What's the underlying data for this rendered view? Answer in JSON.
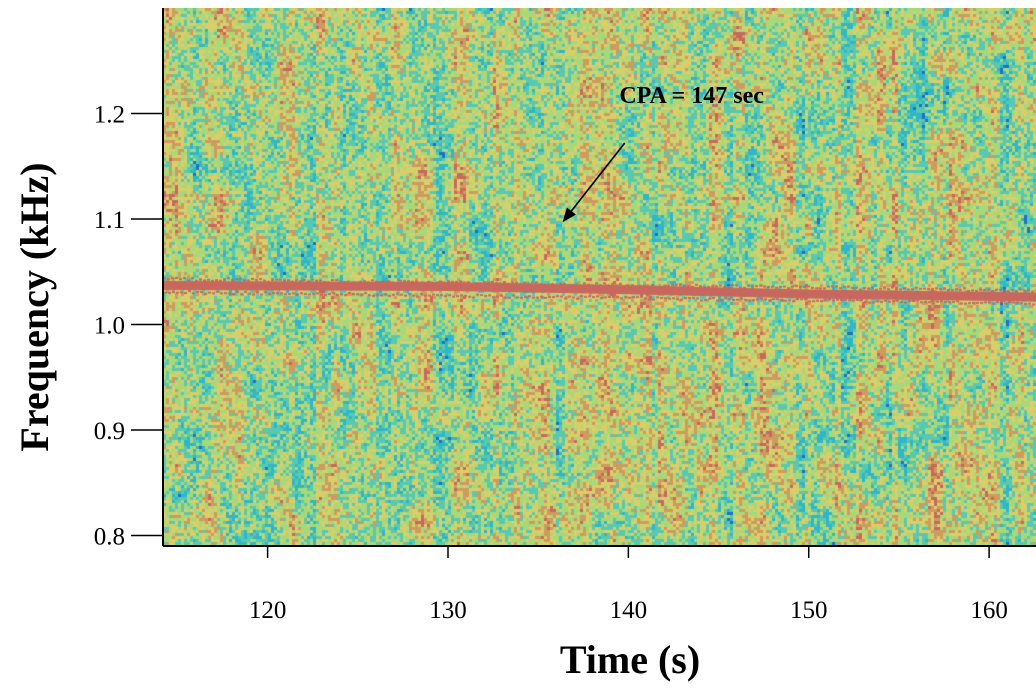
{
  "chart_data": {
    "type": "heatmap",
    "title": "",
    "xlabel": "Time (s)",
    "ylabel": "Frequency (kHz)",
    "xlim": [
      114.2,
      162.6
    ],
    "ylim": [
      0.79,
      1.3
    ],
    "x_ticks": [
      {
        "value": 120,
        "label": "120"
      },
      {
        "value": 130,
        "label": "130"
      },
      {
        "value": 140,
        "label": "140"
      },
      {
        "value": 150,
        "label": "150"
      },
      {
        "value": 160,
        "label": "160"
      }
    ],
    "y_ticks": [
      {
        "value": 0.8,
        "label": "0.8"
      },
      {
        "value": 0.9,
        "label": "0.9"
      },
      {
        "value": 1.0,
        "label": "1.0"
      },
      {
        "value": 1.1,
        "label": "1.1"
      },
      {
        "value": 1.2,
        "label": "1.2"
      }
    ],
    "colormap": [
      "#1e6fc6",
      "#2fb6c8",
      "#58c9b0",
      "#a8d87a",
      "#d8cf6a",
      "#cf9a5e",
      "#c8675e"
    ],
    "tonal_line": {
      "color": "#c8675e",
      "points": [
        [
          114.2,
          1.037
        ],
        [
          130,
          1.036
        ],
        [
          140,
          1.033
        ],
        [
          150,
          1.029
        ],
        [
          162.6,
          1.026
        ]
      ]
    },
    "annotations": [
      {
        "text": "CPA = 147 sec",
        "text_x": 139.5,
        "text_y": 1.21,
        "arrow_from": [
          139.8,
          1.172
        ],
        "arrow_to": [
          136.4,
          1.098
        ]
      }
    ],
    "grid": false,
    "legend": "none"
  }
}
